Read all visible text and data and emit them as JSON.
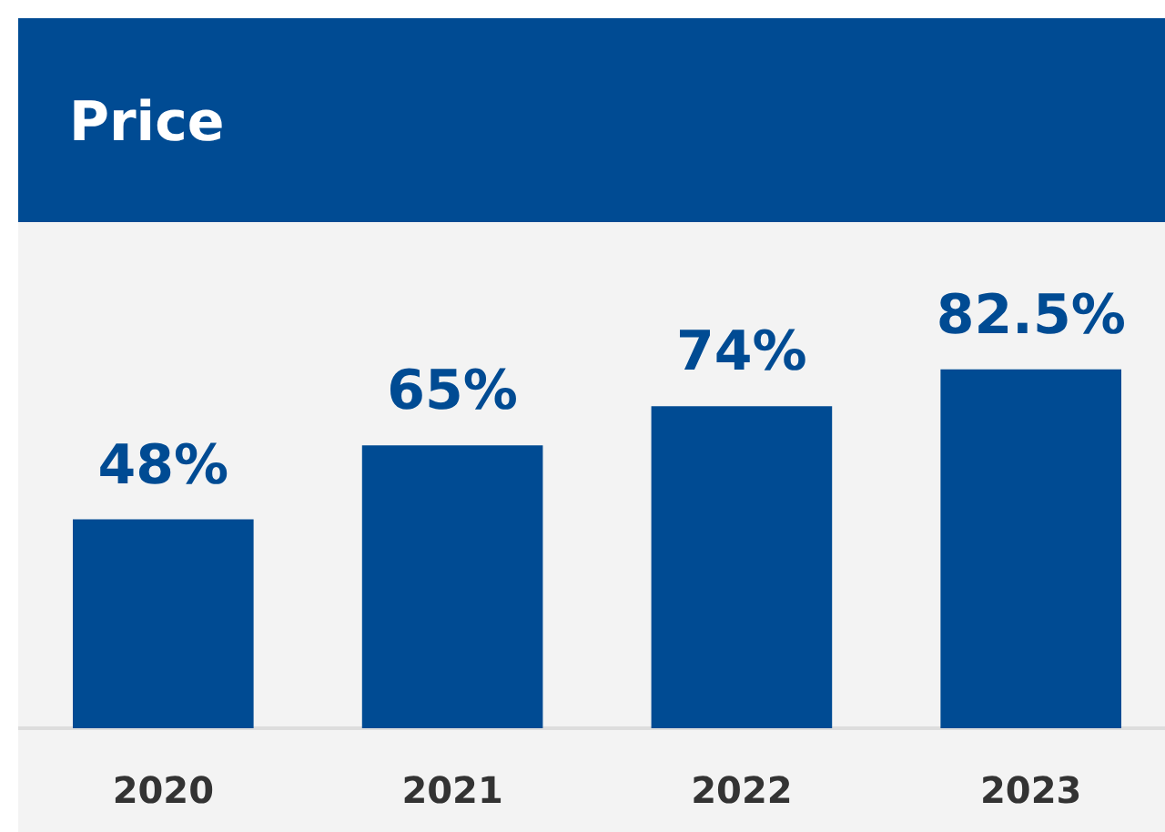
{
  "chart_data": {
    "type": "bar",
    "title": "Price",
    "categories": [
      "2020",
      "2021",
      "2022",
      "2023"
    ],
    "values": [
      48,
      65,
      74,
      82.5
    ],
    "value_labels": [
      "48%",
      "65%",
      "74%",
      "82.5%"
    ],
    "color": "#004b93"
  }
}
